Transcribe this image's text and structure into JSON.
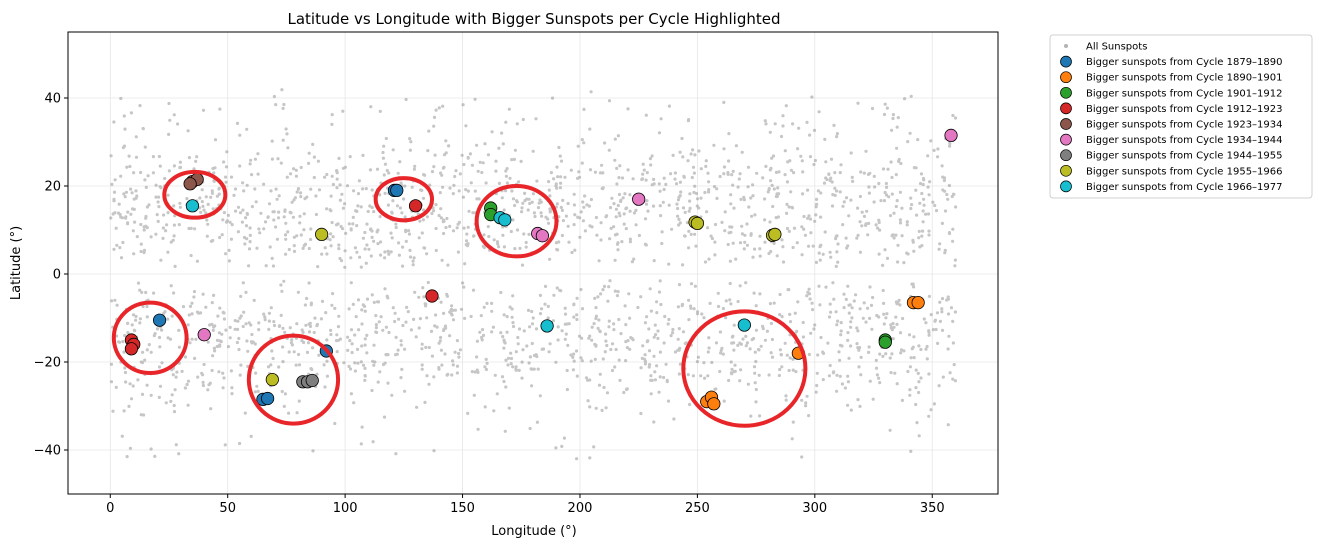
{
  "chart_data": {
    "type": "scatter",
    "title": "Latitude vs Longitude with Bigger Sunspots per Cycle Highlighted",
    "xlabel": "Longitude (°)",
    "ylabel": "Latitude (°)",
    "xlim": [
      -18,
      378
    ],
    "ylim": [
      -50,
      55
    ],
    "xticks": [
      0,
      50,
      100,
      150,
      200,
      250,
      300,
      350
    ],
    "yticks": [
      -40,
      -20,
      0,
      20,
      40
    ],
    "grid": true,
    "legend_position": "outside-right-top",
    "background_series": {
      "name": "All Sunspots",
      "color": "#808080",
      "description_density": "dense bands between 2–33° and -2 to -35° latitude, all longitudes 0–360"
    },
    "series": [
      {
        "name": "Bigger sunspots from Cycle 1879–1890",
        "color": "#1f77b4",
        "points": [
          [
            21,
            -10.5
          ],
          [
            65,
            -28.5
          ],
          [
            67,
            -28.3
          ],
          [
            92,
            -17.5
          ],
          [
            121,
            19
          ],
          [
            122,
            19
          ]
        ]
      },
      {
        "name": "Bigger sunspots from Cycle 1890–1901",
        "color": "#ff7f0e",
        "points": [
          [
            254,
            -29
          ],
          [
            256,
            -28
          ],
          [
            257,
            -29.5
          ],
          [
            293,
            -18
          ],
          [
            342,
            -6.5
          ],
          [
            344,
            -6.5
          ]
        ]
      },
      {
        "name": "Bigger sunspots from Cycle 1901–1912",
        "color": "#2ca02c",
        "points": [
          [
            162,
            15
          ],
          [
            162,
            13.5
          ],
          [
            330,
            -15
          ],
          [
            330,
            -15.5
          ]
        ]
      },
      {
        "name": "Bigger sunspots from Cycle 1912–1923",
        "color": "#d62728",
        "points": [
          [
            9,
            -15
          ],
          [
            10,
            -16
          ],
          [
            9,
            -17
          ],
          [
            130,
            15.5
          ],
          [
            137,
            -5
          ]
        ]
      },
      {
        "name": "Bigger sunspots from Cycle 1923–1934",
        "color": "#8c564b",
        "points": [
          [
            35,
            21
          ],
          [
            37,
            21.5
          ],
          [
            34,
            20.5
          ]
        ]
      },
      {
        "name": "Bigger sunspots from Cycle 1934–1944",
        "color": "#e377c2",
        "points": [
          [
            40,
            -13.8
          ],
          [
            182,
            9.2
          ],
          [
            184,
            8.7
          ],
          [
            225,
            17
          ],
          [
            358,
            31.5
          ]
        ]
      },
      {
        "name": "Bigger sunspots from Cycle 1944–1955",
        "color": "#7f7f7f",
        "points": [
          [
            82,
            -24.5
          ],
          [
            84,
            -24.5
          ],
          [
            86,
            -24.2
          ]
        ]
      },
      {
        "name": "Bigger sunspots from Cycle 1955–1966",
        "color": "#bcbd22",
        "points": [
          [
            90,
            9
          ],
          [
            69,
            -24
          ],
          [
            249,
            11.8
          ],
          [
            250,
            11.5
          ],
          [
            282,
            8.8
          ],
          [
            283,
            9
          ]
        ]
      },
      {
        "name": "Bigger sunspots from Cycle 1966–1977",
        "color": "#17becf",
        "points": [
          [
            35,
            15.5
          ],
          [
            166,
            12.8
          ],
          [
            168,
            12.3
          ],
          [
            186,
            -11.8
          ],
          [
            270,
            -11.6
          ]
        ]
      }
    ],
    "annotation_circles": [
      {
        "cx": 36,
        "cy": 18,
        "rx": 13,
        "ry": 5.2,
        "color": "#e8262a"
      },
      {
        "cx": 125,
        "cy": 17,
        "rx": 12,
        "ry": 4.8,
        "color": "#e8262a"
      },
      {
        "cx": 173,
        "cy": 12,
        "rx": 17,
        "ry": 8,
        "color": "#e8262a"
      },
      {
        "cx": 17,
        "cy": -14.5,
        "rx": 15.5,
        "ry": 8,
        "color": "#e8262a"
      },
      {
        "cx": 78,
        "cy": -24,
        "rx": 19,
        "ry": 10,
        "color": "#e8262a"
      },
      {
        "cx": 270,
        "cy": -21.5,
        "rx": 26,
        "ry": 13,
        "color": "#e8262a"
      }
    ]
  }
}
